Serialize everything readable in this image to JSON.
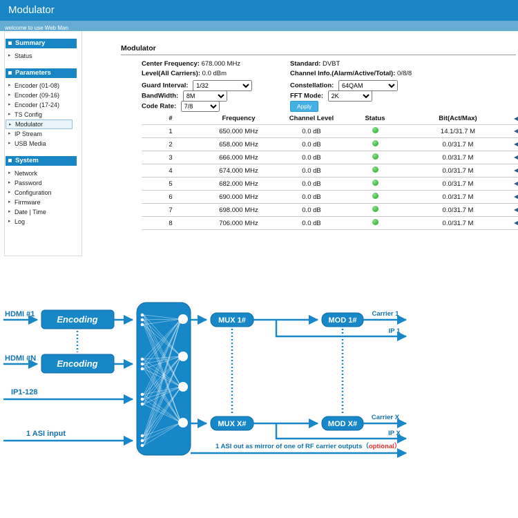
{
  "header": {
    "title": "Modulator",
    "welcome": "welcome to use Web Man"
  },
  "sidebar": {
    "sections": [
      {
        "label": "Summary",
        "items": [
          {
            "label": "Status"
          }
        ]
      },
      {
        "label": "Parameters",
        "items": [
          {
            "label": "Encoder (01-08)"
          },
          {
            "label": "Encoder (09-16)"
          },
          {
            "label": "Encoder (17-24)"
          },
          {
            "label": "TS Config"
          },
          {
            "label": "Modulator",
            "selected": true
          },
          {
            "label": "IP Stream"
          },
          {
            "label": "USB Media"
          }
        ]
      },
      {
        "label": "System",
        "items": [
          {
            "label": "Network"
          },
          {
            "label": "Password"
          },
          {
            "label": "Configuration"
          },
          {
            "label": "Firmware"
          },
          {
            "label": "Date | Time"
          },
          {
            "label": "Log"
          }
        ]
      }
    ]
  },
  "main": {
    "title": "Modulator",
    "info": {
      "center_frequency_label": "Center Frequency:",
      "center_frequency": "678.000 MHz",
      "standard_label": "Standard:",
      "standard": "DVBT",
      "level_label": "Level(All Carriers):",
      "level": "0.0 dBm",
      "channel_info_label": "Channel Info.(Alarm/Active/Total):",
      "channel_info": "0/8/8",
      "guard_interval_label": "Guard Interval:",
      "guard_interval": "1/32",
      "constellation_label": "Constellation:",
      "constellation": "64QAM",
      "bandwidth_label": "BandWidth:",
      "bandwidth": "8M",
      "fft_mode_label": "FFT Mode:",
      "fft_mode": "2K",
      "code_rate_label": "Code Rate:",
      "code_rate": "7/8",
      "apply_label": "Apply"
    },
    "table": {
      "headers": [
        "#",
        "Frequency",
        "Channel Level",
        "Status",
        "Bit(Act/Max)"
      ],
      "rows": [
        {
          "num": "1",
          "frequency": "650.000 MHz",
          "level": "0.0 dB",
          "bit": "14.1/31.7 M"
        },
        {
          "num": "2",
          "frequency": "658.000 MHz",
          "level": "0.0 dB",
          "bit": "0.0/31.7 M"
        },
        {
          "num": "3",
          "frequency": "666.000 MHz",
          "level": "0.0 dB",
          "bit": "0.0/31.7 M"
        },
        {
          "num": "4",
          "frequency": "674.000 MHz",
          "level": "0.0 dB",
          "bit": "0.0/31.7 M"
        },
        {
          "num": "5",
          "frequency": "682.000 MHz",
          "level": "0.0 dB",
          "bit": "0.0/31.7 M"
        },
        {
          "num": "6",
          "frequency": "690.000 MHz",
          "level": "0.0 dB",
          "bit": "0.0/31.7 M"
        },
        {
          "num": "7",
          "frequency": "698.000 MHz",
          "level": "0.0 dB",
          "bit": "0.0/31.7 M"
        },
        {
          "num": "8",
          "frequency": "706.000 MHz",
          "level": "0.0 dB",
          "bit": "0.0/31.7 M"
        }
      ]
    }
  },
  "diagram": {
    "hdmi1": "HDMI #1",
    "hdmiN": "HDMI #N",
    "ip_in": "IP1-128",
    "asi_in": "1 ASI input",
    "encoding1": "Encoding",
    "encoding2": "Encoding",
    "mux1": "MUX 1#",
    "muxX": "MUX X#",
    "mod1": "MOD 1#",
    "modX": "MOD X#",
    "carrier1": "Carrier 1",
    "ip1": "IP 1",
    "carrierX": "Carrier X",
    "ipX": "IP X",
    "asi_note": "1 ASI out as mirror of one of RF carrier outputs（",
    "asi_note_optional": "optional",
    "asi_note_close": "）",
    "colors": {
      "blue": "#1787c7",
      "accent": "#1886c5",
      "optional_red": "#e82c2c"
    }
  }
}
